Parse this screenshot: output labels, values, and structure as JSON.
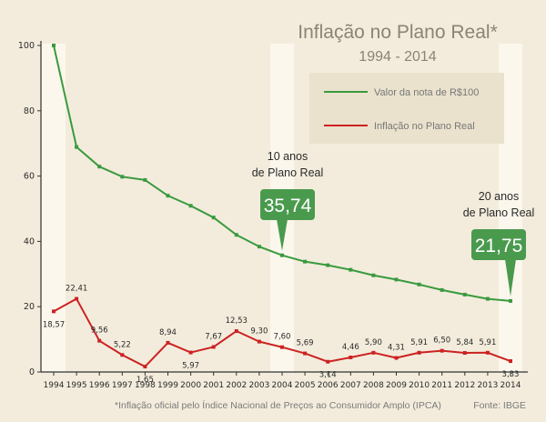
{
  "chart_data": {
    "type": "line",
    "title": "Inflação no Plano Real*",
    "subtitle": "1994 - 2014",
    "x": [
      "1994",
      "1995",
      "1996",
      "1997",
      "1998",
      "1999",
      "2000",
      "2001",
      "2002",
      "2003",
      "2004",
      "2005",
      "2006",
      "2007",
      "2008",
      "2009",
      "2010",
      "2011",
      "2012",
      "2013",
      "2014"
    ],
    "yticks": [
      "0",
      "20",
      "40",
      "60",
      "80",
      "100"
    ],
    "ylim": [
      0,
      100
    ],
    "series": [
      {
        "name": "Valor da nota de R$100",
        "color": "#3a9a3e",
        "values": [
          100,
          68.9,
          62.9,
          59.8,
          58.8,
          54.0,
          50.9,
          47.3,
          42.0,
          38.4,
          35.74,
          33.8,
          32.7,
          31.3,
          29.6,
          28.3,
          26.8,
          25.1,
          23.7,
          22.4,
          21.75
        ]
      },
      {
        "name": "Inflação no Plano Real",
        "color": "#cc2222",
        "values": [
          18.57,
          22.41,
          9.56,
          5.22,
          1.65,
          8.94,
          5.97,
          7.67,
          12.53,
          9.3,
          7.6,
          5.69,
          3.14,
          4.46,
          5.9,
          4.31,
          5.91,
          6.5,
          5.84,
          5.91,
          3.33
        ],
        "labels": [
          "18,57",
          "22,41",
          "9,56",
          "5,22",
          "1,65",
          "8,94",
          "5,97",
          "7,67",
          "12,53",
          "9,30",
          "7,60",
          "5,69",
          "3,14",
          "4,46",
          "5,90",
          "4,31",
          "5,91",
          "6,50",
          "5,84",
          "5,91",
          "3,33"
        ]
      }
    ],
    "highlight_years": [
      "1994",
      "2004",
      "2014"
    ],
    "annotations": [
      {
        "line1": "10 anos",
        "line2": "de Plano Real",
        "value": "35,74",
        "year": "2004",
        "target": 35.74
      },
      {
        "line1": "20 anos",
        "line2": "de Plano Real",
        "value": "21,75",
        "year": "2014",
        "target": 21.75
      }
    ],
    "legend_position": "top-right",
    "footnote": "*Inflação oficial pelo Índice Nacional de Preços ao Consumidor Amplo (IPCA)",
    "source": "Fonte: IBGE",
    "colors": {
      "background": "#f3ecdc",
      "highlight_band": "#fbf7ec",
      "legend_bg": "#eae2cd",
      "callout": "#4a9a4e"
    }
  }
}
